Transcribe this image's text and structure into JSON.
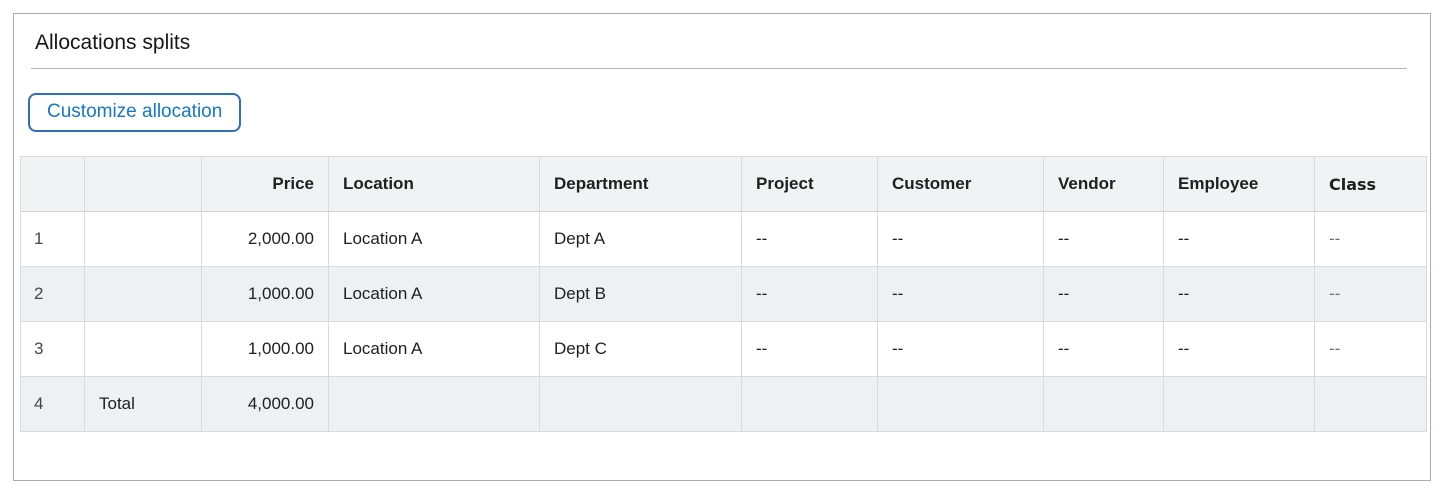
{
  "panel": {
    "title": "Allocations splits",
    "customize_button_label": "Customize allocation"
  },
  "colors": {
    "accent_blue": "#1478c9",
    "button_border": "#2e6fb7",
    "header_bg": "#f0f2f3",
    "stripe_bg": "#eef1f4",
    "grid_border": "#d8dbdd",
    "outer_border": "#ababab"
  },
  "table": {
    "columns": [
      {
        "key": "num",
        "label": ""
      },
      {
        "key": "label",
        "label": ""
      },
      {
        "key": "price",
        "label": "Price"
      },
      {
        "key": "location",
        "label": "Location"
      },
      {
        "key": "department",
        "label": "Department"
      },
      {
        "key": "project",
        "label": "Project"
      },
      {
        "key": "customer",
        "label": "Customer"
      },
      {
        "key": "vendor",
        "label": "Vendor"
      },
      {
        "key": "employee",
        "label": "Employee"
      },
      {
        "key": "class",
        "label": "Class"
      }
    ],
    "rows": [
      {
        "num": "1",
        "label": "",
        "price": "2,000.00",
        "location": "Location A",
        "department": "Dept A",
        "project": "--",
        "customer": "--",
        "vendor": "--",
        "employee": "--",
        "class": "--"
      },
      {
        "num": "2",
        "label": "",
        "price": "1,000.00",
        "location": "Location A",
        "department": "Dept B",
        "project": "--",
        "customer": "--",
        "vendor": "--",
        "employee": "--",
        "class": "--"
      },
      {
        "num": "3",
        "label": "",
        "price": "1,000.00",
        "location": "Location A",
        "department": "Dept C",
        "project": "--",
        "customer": "--",
        "vendor": "--",
        "employee": "--",
        "class": "--"
      },
      {
        "num": "4",
        "label": "Total",
        "price": "4,000.00",
        "location": "",
        "department": "",
        "project": "",
        "customer": "",
        "vendor": "",
        "employee": "",
        "class": ""
      }
    ]
  }
}
